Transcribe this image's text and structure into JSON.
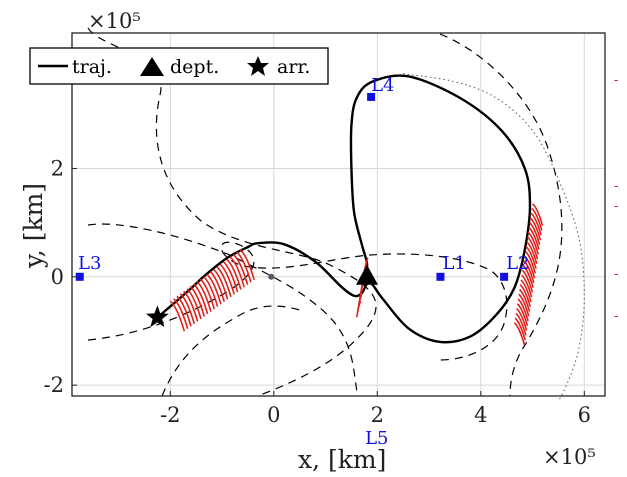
{
  "chart_data": {
    "type": "line",
    "title": "",
    "xlabel": "x, [km]",
    "ylabel": "y, [km]",
    "x_scale_label": "×10⁵",
    "y_scale_label": "×10⁵",
    "xlim": [
      -3.9,
      6.4
    ],
    "ylim": [
      -2.2,
      4.5
    ],
    "x_ticks": [
      -2,
      0,
      2,
      4,
      6
    ],
    "y_ticks": [
      -2,
      0,
      2
    ],
    "x_tick_labels": [
      "-2",
      "0",
      "2",
      "4",
      "6"
    ],
    "y_tick_labels": [
      "-2",
      "0",
      "2"
    ],
    "grid": true,
    "legend": {
      "placement": "top-left",
      "entries": [
        {
          "label": "traj.",
          "marker": "line"
        },
        {
          "label": "dept.",
          "marker": "triangle"
        },
        {
          "label": "arr.",
          "marker": "star"
        }
      ]
    },
    "series": [
      {
        "name": "traj.",
        "style": "solid",
        "color": "#000000",
        "x": [
          -2.25,
          -1.7,
          -1.3,
          -0.9,
          -0.5,
          -0.3,
          0.2,
          0.8,
          1.3,
          1.55,
          1.7,
          1.85,
          2.1,
          2.6,
          3.2,
          3.8,
          4.3,
          4.65,
          4.85,
          4.95,
          4.85,
          4.4,
          3.6,
          2.6,
          1.9,
          1.6,
          1.5,
          1.5,
          1.55,
          1.7,
          1.8,
          1.78
        ],
        "y": [
          -0.75,
          -0.3,
          0.05,
          0.35,
          0.55,
          0.62,
          0.6,
          0.28,
          -0.18,
          -0.35,
          -0.3,
          -0.1,
          -0.4,
          -0.95,
          -1.2,
          -1.1,
          -0.7,
          -0.2,
          0.5,
          1.3,
          2.0,
          2.7,
          3.3,
          3.7,
          3.6,
          3.3,
          2.8,
          2.0,
          1.2,
          0.6,
          0.25,
          0.0
        ]
      },
      {
        "name": "",
        "style": "dashed",
        "color": "#000000",
        "x": [
          3.2,
          3.9,
          4.5,
          5.0,
          5.4,
          5.5,
          5.4,
          5.2,
          5.0,
          4.9,
          4.9,
          4.8,
          4.6,
          4.4
        ],
        "y": [
          4.6,
          4.2,
          3.5,
          2.6,
          1.6,
          0.6,
          -0.3,
          -1.0,
          -1.4,
          -1.7,
          -2.0,
          -2.2,
          -2.4,
          -2.6
        ],
        "mode": "line"
      },
      {
        "name": "",
        "style": "dotted",
        "color": "#444444",
        "x": [
          2.5,
          3.5,
          4.3,
          5.0,
          5.5,
          5.9,
          6.0,
          5.9,
          5.7,
          5.5
        ],
        "y": [
          3.75,
          3.6,
          3.3,
          2.7,
          1.8,
          0.7,
          -0.4,
          -1.3,
          -1.9,
          -2.3
        ]
      }
    ],
    "points": [
      {
        "label": "L1",
        "x": 3.22,
        "y": 0.0,
        "color": "#1010e0"
      },
      {
        "label": "L2",
        "x": 4.45,
        "y": 0.0,
        "color": "#1010e0"
      },
      {
        "label": "L3",
        "x": -3.75,
        "y": 0.0,
        "color": "#1010e0"
      },
      {
        "label": "L4",
        "x": 1.88,
        "y": 3.32,
        "color": "#1010e0"
      },
      {
        "label": "L5",
        "x": 1.88,
        "y": -3.32,
        "color": "#1010e0"
      }
    ],
    "markers": {
      "departure": {
        "x": 1.8,
        "y": 0.0
      },
      "arrival": {
        "x": -2.25,
        "y": -0.75
      },
      "origin": {
        "x": -0.05,
        "y": 0.0
      }
    }
  }
}
